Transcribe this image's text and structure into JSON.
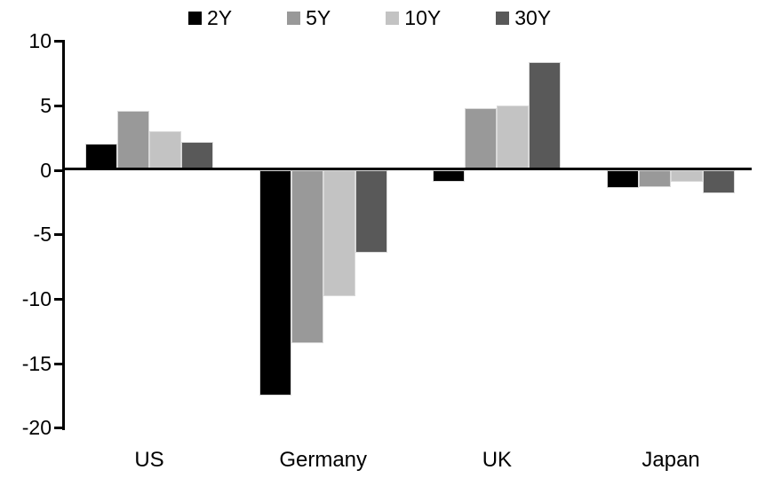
{
  "chart_data": {
    "type": "bar",
    "title": "",
    "xlabel": "",
    "ylabel": "",
    "categories": [
      "US",
      "Germany",
      "UK",
      "Japan"
    ],
    "series": [
      {
        "name": "2Y",
        "color": "#000000",
        "values": [
          2.1,
          -17.5,
          -0.9,
          -1.4
        ]
      },
      {
        "name": "5Y",
        "color": "#999999",
        "values": [
          4.6,
          -13.4,
          4.8,
          -1.3
        ]
      },
      {
        "name": "10Y",
        "color": "#c3c3c3",
        "values": [
          3.0,
          -9.8,
          5.0,
          -0.9
        ]
      },
      {
        "name": "30Y",
        "color": "#595959",
        "values": [
          2.2,
          -6.4,
          8.4,
          -1.8
        ]
      }
    ],
    "ylim": [
      -20,
      10
    ],
    "yticks": [
      10,
      5,
      0,
      -5,
      -10,
      -15,
      -20
    ],
    "ytick_interval": 5,
    "legend_position": "top",
    "legend_labels": [
      "2Y",
      "5Y",
      "10Y",
      "30Y"
    ],
    "grid": false,
    "axis_color": "#000000",
    "bar_edge_color": "#d9d9d9",
    "background_color": "#ffffff"
  }
}
